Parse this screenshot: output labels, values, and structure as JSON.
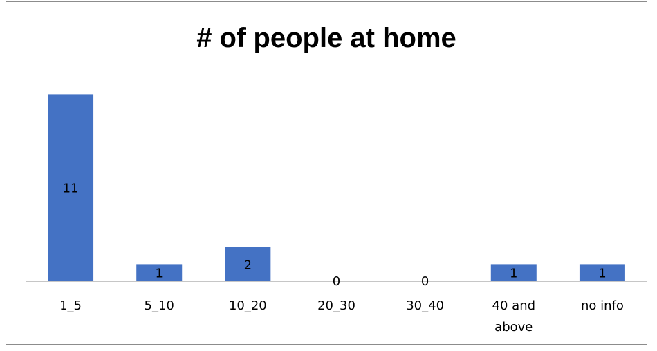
{
  "chart_data": {
    "type": "bar",
    "title": "# of people at home",
    "categories": [
      "1_5",
      "5_10",
      "10_20",
      "20_30",
      "30_40",
      "40 and above",
      "no info"
    ],
    "category_lines": [
      [
        "1_5"
      ],
      [
        "5_10"
      ],
      [
        "10_20"
      ],
      [
        "20_30"
      ],
      [
        "30_40"
      ],
      [
        "40 and",
        "above"
      ],
      [
        "no info"
      ]
    ],
    "values": [
      11,
      1,
      2,
      0,
      0,
      1,
      1
    ],
    "data_labels": [
      "11",
      "1",
      "2",
      "0",
      "0",
      "1",
      "1"
    ],
    "ylim": [
      0,
      12
    ],
    "grid": false,
    "legend": "none",
    "bar_color": "#4472C4",
    "axis_color": "#8c8c8c"
  }
}
